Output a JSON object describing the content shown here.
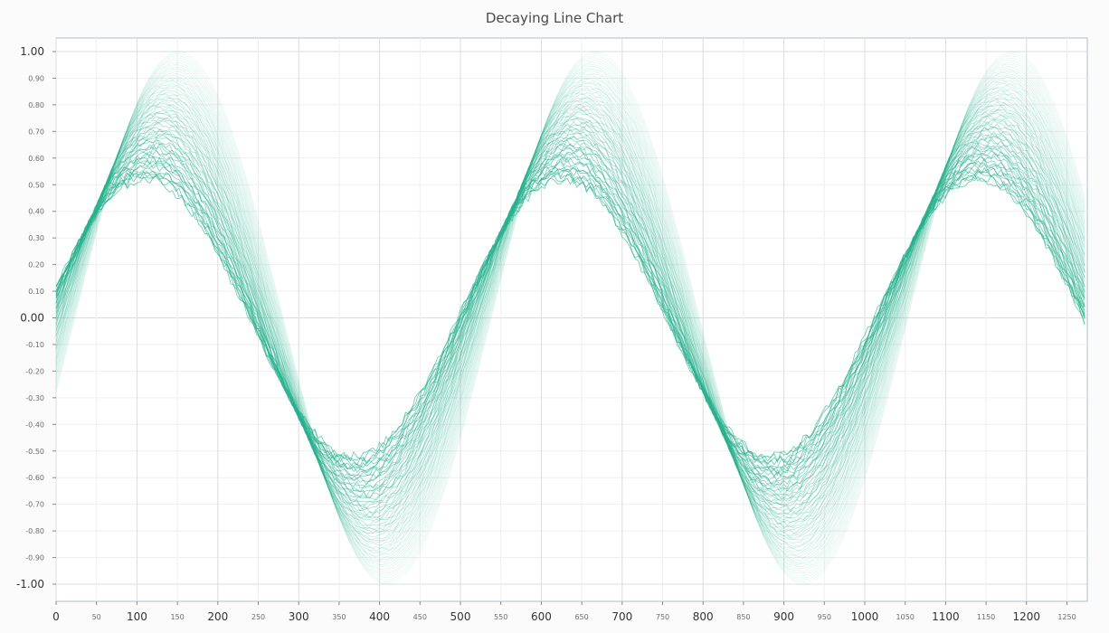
{
  "title": "Decaying Line Chart",
  "chart_data": {
    "type": "line",
    "title": "Decaying Line Chart",
    "xlabel": "",
    "ylabel": "",
    "xlim": [
      0,
      1280
    ],
    "ylim": [
      -1.0,
      1.0
    ],
    "grid": true,
    "legend": "none",
    "line_color": "#26b08c",
    "background_color": "#ffffff",
    "x_ticks_major": [
      "0",
      "100",
      "200",
      "300",
      "400",
      "500",
      "600",
      "700",
      "800",
      "900",
      "1000",
      "1100",
      "1200"
    ],
    "x_ticks_minor": [
      "50",
      "150",
      "250",
      "350",
      "450",
      "550",
      "650",
      "750",
      "850",
      "950",
      "1050",
      "1150",
      "1250"
    ],
    "y_ticks_major": [
      "1.00",
      "0.00",
      "-1.00"
    ],
    "y_ticks_minor": [
      "0.90",
      "0.80",
      "0.70",
      "0.60",
      "0.50",
      "0.40",
      "0.30",
      "0.20",
      "0.10",
      "-0.10",
      "-0.20",
      "-0.30",
      "-0.40",
      "-0.50",
      "-0.60",
      "-0.70",
      "-0.80",
      "-0.90"
    ],
    "series_family": {
      "description": "Family of decaying sine traces drawn with fading opacity",
      "period": 515,
      "envelope_outer": 1.0,
      "envelope_inner": 0.52,
      "start_value_newest": 0.22,
      "start_value_oldest": -0.28,
      "trace_count": 60
    }
  }
}
